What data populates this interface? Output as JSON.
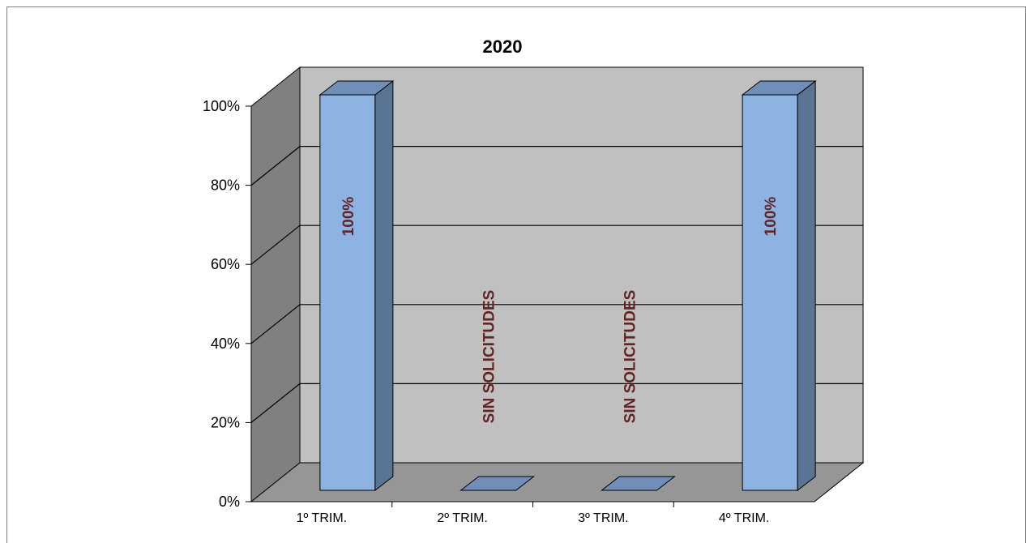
{
  "chart_data": {
    "type": "bar",
    "title": "2020",
    "categories": [
      "1º TRIM.",
      "2º TRIM.",
      "3º TRIM.",
      "4º TRIM."
    ],
    "values": [
      100,
      0,
      0,
      100
    ],
    "data_labels": [
      "100%",
      "SIN SOLICITUDES",
      "SIN SOLICITUDES",
      "100%"
    ],
    "y_ticks": [
      "0%",
      "20%",
      "40%",
      "60%",
      "80%",
      "100%"
    ],
    "ylim": [
      0,
      100
    ],
    "grid": true,
    "style": "3d-column",
    "colors": {
      "bar_front": "#8db3e2",
      "bar_side": "#5a7494",
      "bar_top": "#6f8fb8",
      "back_wall": "#c0c0c0",
      "side_wall": "#808080",
      "floor": "#969696",
      "label_text": "#632423"
    }
  }
}
